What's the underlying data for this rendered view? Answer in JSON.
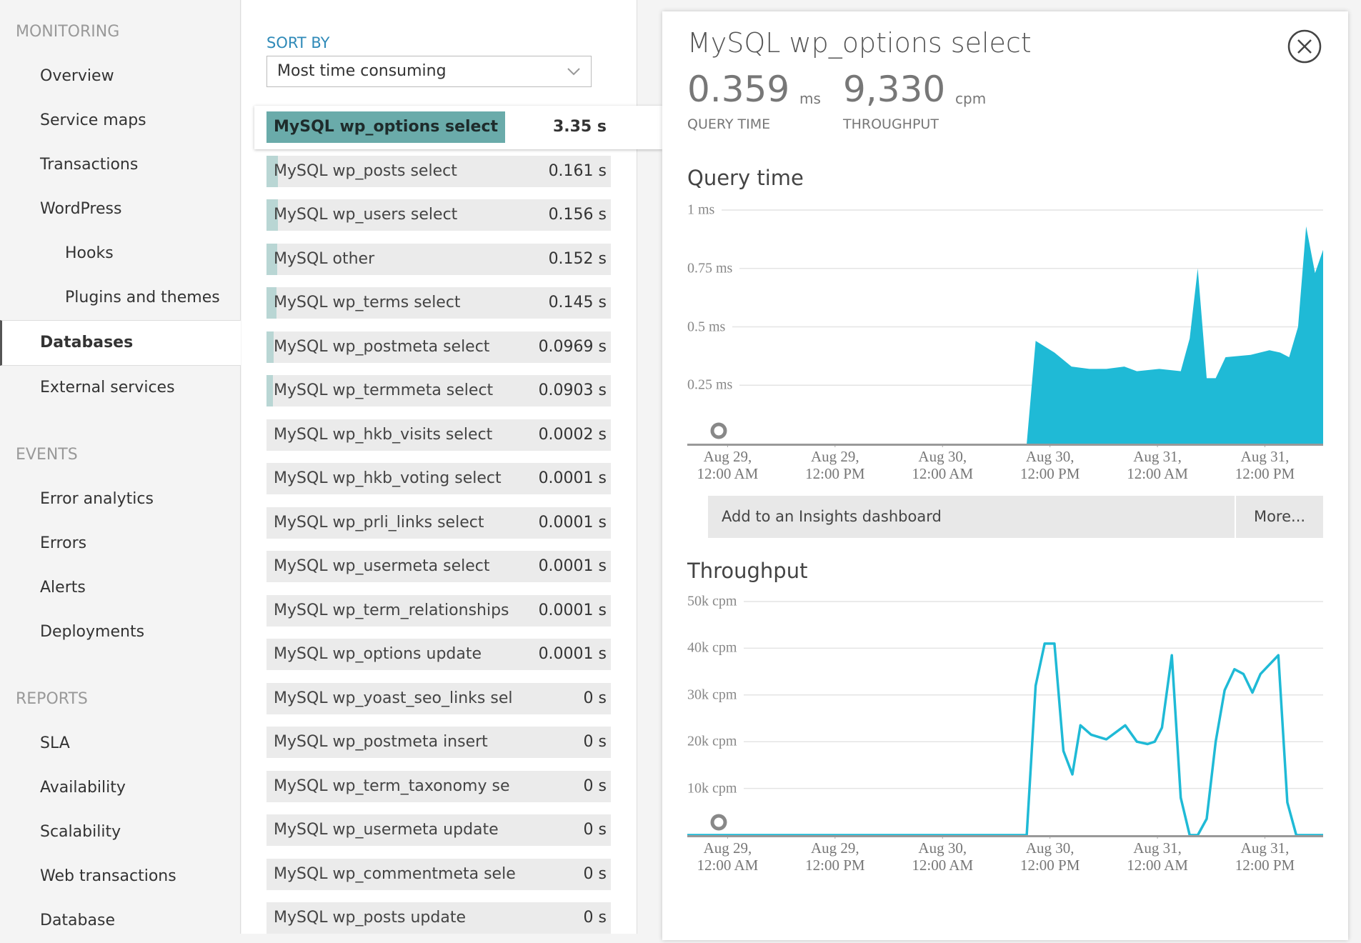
{
  "sidebar": {
    "sections": [
      {
        "title": "MONITORING",
        "items": [
          {
            "label": "Overview"
          },
          {
            "label": "Service maps"
          },
          {
            "label": "Transactions"
          },
          {
            "label": "WordPress"
          },
          {
            "label": "Hooks",
            "indent": true
          },
          {
            "label": "Plugins and themes",
            "indent": true
          },
          {
            "label": "Databases",
            "active": true
          },
          {
            "label": "External services"
          }
        ]
      },
      {
        "title": "EVENTS",
        "items": [
          {
            "label": "Error analytics"
          },
          {
            "label": "Errors"
          },
          {
            "label": "Alerts"
          },
          {
            "label": "Deployments"
          }
        ]
      },
      {
        "title": "REPORTS",
        "items": [
          {
            "label": "SLA"
          },
          {
            "label": "Availability"
          },
          {
            "label": "Scalability"
          },
          {
            "label": "Web transactions"
          },
          {
            "label": "Database"
          }
        ]
      }
    ]
  },
  "sort": {
    "label": "SORT BY",
    "selected": "Most time consuming"
  },
  "queries": [
    {
      "name": "MySQL wp_options select",
      "value": 3.35,
      "label": "3.35 s",
      "selected": true
    },
    {
      "name": "MySQL wp_posts select",
      "value": 0.161,
      "label": "0.161 s"
    },
    {
      "name": "MySQL wp_users select",
      "value": 0.156,
      "label": "0.156 s"
    },
    {
      "name": "MySQL other",
      "value": 0.152,
      "label": "0.152 s"
    },
    {
      "name": "MySQL wp_terms select",
      "value": 0.145,
      "label": "0.145 s"
    },
    {
      "name": "MySQL wp_postmeta select",
      "value": 0.0969,
      "label": "0.0969 s"
    },
    {
      "name": "MySQL wp_termmeta select",
      "value": 0.0903,
      "label": "0.0903 s"
    },
    {
      "name": "MySQL wp_hkb_visits select",
      "value": 0.0002,
      "label": "0.0002 s"
    },
    {
      "name": "MySQL wp_hkb_voting select",
      "value": 0.0001,
      "label": "0.0001 s"
    },
    {
      "name": "MySQL wp_prli_links select",
      "value": 0.0001,
      "label": "0.0001 s"
    },
    {
      "name": "MySQL wp_usermeta select",
      "value": 0.0001,
      "label": "0.0001 s"
    },
    {
      "name": "MySQL wp_term_relationships",
      "value": 0.0001,
      "label": "0.0001 s"
    },
    {
      "name": "MySQL wp_options update",
      "value": 0.0001,
      "label": "0.0001 s"
    },
    {
      "name": "MySQL wp_yoast_seo_links sel",
      "value": 0,
      "label": "0 s"
    },
    {
      "name": "MySQL wp_postmeta insert",
      "value": 0,
      "label": "0 s"
    },
    {
      "name": "MySQL wp_term_taxonomy se",
      "value": 0,
      "label": "0 s"
    },
    {
      "name": "MySQL wp_usermeta update",
      "value": 0,
      "label": "0 s"
    },
    {
      "name": "MySQL wp_commentmeta sele",
      "value": 0,
      "label": "0 s"
    },
    {
      "name": "MySQL wp_posts update",
      "value": 0,
      "label": "0 s"
    }
  ],
  "detail": {
    "title": "MySQL wp_options select",
    "metrics": [
      {
        "value": "0.359",
        "unit": "ms",
        "label": "QUERY TIME"
      },
      {
        "value": "9,330",
        "unit": "cpm",
        "label": "THROUGHPUT"
      }
    ],
    "buttons": [
      "Add to an Insights dashboard",
      "More..."
    ]
  },
  "chart_data": [
    {
      "type": "area",
      "title": "Query time",
      "color": "#1fbad6",
      "grid": true,
      "x": [
        "Aug 28, 7:30 PM",
        "Aug 30, 9:24 AM",
        "Aug 30, 10:24 AM",
        "Aug 30, 12:30 PM",
        "Aug 30, 2:24 PM",
        "Aug 30, 4:24 PM",
        "Aug 30, 6:18 PM",
        "Aug 30, 8:18 PM",
        "Aug 30, 9:42 PM",
        "Aug 31, 12:12 AM",
        "Aug 31, 2:36 AM",
        "Aug 31, 3:36 AM",
        "Aug 31, 4:30 AM",
        "Aug 31, 5:30 AM",
        "Aug 31, 6:30 AM",
        "Aug 31, 7:36 AM",
        "Aug 31, 10:24 AM",
        "Aug 31, 12:30 PM",
        "Aug 31, 1:42 PM",
        "Aug 31, 2:42 PM",
        "Aug 31, 3:42 PM",
        "Aug 31, 4:36 PM",
        "Aug 31, 5:36 PM",
        "Aug 31, 6:30 PM"
      ],
      "values": [
        0,
        0,
        0.44,
        0.39,
        0.33,
        0.32,
        0.32,
        0.33,
        0.31,
        0.32,
        0.31,
        0.45,
        0.75,
        0.28,
        0.28,
        0.37,
        0.38,
        0.4,
        0.39,
        0.37,
        0.5,
        0.93,
        0.73,
        0.83
      ],
      "xlim": [
        "Aug 28, 7:30 PM",
        "Aug 31, 6:30 PM"
      ],
      "xticks": [
        "Aug 29, 12:00 AM",
        "Aug 29, 12:00 PM",
        "Aug 30, 12:00 AM",
        "Aug 30, 12:00 PM",
        "Aug 31, 12:00 AM",
        "Aug 31, 12:00 PM"
      ],
      "ylim": [
        0,
        1
      ],
      "yticks": [
        {
          "value": 0.25,
          "label": "0.25 ms"
        },
        {
          "value": 0.5,
          "label": "0.5 ms"
        },
        {
          "value": 0.75,
          "label": "0.75 ms"
        },
        {
          "value": 1,
          "label": "1 ms"
        }
      ]
    },
    {
      "type": "line",
      "title": "Throughput",
      "color": "#1fbad6",
      "grid": true,
      "x": [
        "Aug 28, 7:30 PM",
        "Aug 30, 9:24 AM",
        "Aug 30, 10:24 AM",
        "Aug 30, 11:24 AM",
        "Aug 30, 12:30 PM",
        "Aug 30, 1:30 PM",
        "Aug 30, 2:30 PM",
        "Aug 30, 3:24 PM",
        "Aug 30, 4:36 PM",
        "Aug 30, 6:18 PM",
        "Aug 30, 8:24 PM",
        "Aug 30, 9:42 PM",
        "Aug 30, 10:54 PM",
        "Aug 30, 11:42 PM",
        "Aug 31, 12:30 AM",
        "Aug 31, 1:36 AM",
        "Aug 31, 2:36 AM",
        "Aug 31, 3:36 AM",
        "Aug 31, 4:30 AM",
        "Aug 31, 5:30 AM",
        "Aug 31, 6:30 AM",
        "Aug 31, 7:30 AM",
        "Aug 31, 8:36 AM",
        "Aug 31, 9:36 AM",
        "Aug 31, 10:36 AM",
        "Aug 31, 11:30 AM",
        "Aug 31, 1:30 PM",
        "Aug 31, 2:30 PM",
        "Aug 31, 3:30 PM",
        "Aug 31, 6:30 PM"
      ],
      "values": [
        0,
        0,
        32000,
        41000,
        41000,
        18000,
        13000,
        23500,
        21500,
        20500,
        23500,
        20000,
        19500,
        20000,
        23000,
        38500,
        8000,
        0,
        0,
        3500,
        20000,
        31000,
        35500,
        34500,
        30500,
        34500,
        38500,
        7000,
        0,
        0
      ],
      "xlim": [
        "Aug 28, 7:30 PM",
        "Aug 31, 6:30 PM"
      ],
      "xticks": [
        "Aug 29, 12:00 AM",
        "Aug 29, 12:00 PM",
        "Aug 30, 12:00 AM",
        "Aug 30, 12:00 PM",
        "Aug 31, 12:00 AM",
        "Aug 31, 12:00 PM"
      ],
      "ylim": [
        0,
        50000
      ],
      "yticks": [
        {
          "value": 10000,
          "label": "10k cpm"
        },
        {
          "value": 20000,
          "label": "20k cpm"
        },
        {
          "value": 30000,
          "label": "30k cpm"
        },
        {
          "value": 40000,
          "label": "40k cpm"
        },
        {
          "value": 50000,
          "label": "50k cpm"
        }
      ]
    }
  ]
}
